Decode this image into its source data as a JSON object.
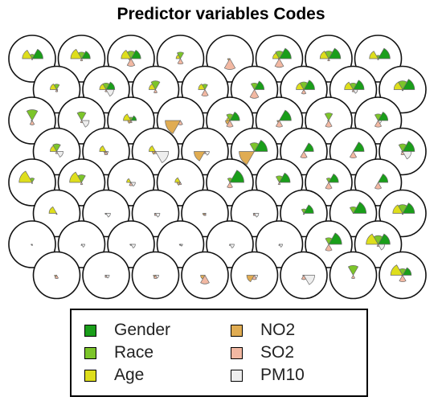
{
  "title": "Predictor variables Codes",
  "chart_data": {
    "type": "som-codes-segments",
    "title": "Predictor variables Codes",
    "grid": {
      "rows": 8,
      "cols": 8,
      "topology": "hexagonal"
    },
    "variables": [
      "Gender",
      "Race",
      "Age",
      "NO2",
      "SO2",
      "PM10"
    ],
    "colors": {
      "Gender": "#1a9e1a",
      "Race": "#7cc52a",
      "Age": "#dede1c",
      "NO2": "#e0ac52",
      "SO2": "#f2b8a2",
      "PM10": "#eeeeee"
    },
    "codes": [
      [
        [
          0.5,
          0.2,
          0.45,
          0.0,
          0.05,
          0.0
        ],
        [
          0.4,
          0.3,
          0.5,
          0.0,
          0.1,
          0.0
        ],
        [
          0.45,
          0.35,
          0.45,
          0.1,
          0.35,
          0.0
        ],
        [
          0.0,
          0.3,
          0.2,
          0.0,
          0.25,
          0.0
        ],
        [
          0.0,
          0.0,
          0.0,
          0.1,
          0.5,
          0.0
        ],
        [
          0.55,
          0.35,
          0.3,
          0.05,
          0.4,
          0.0
        ],
        [
          0.55,
          0.35,
          0.4,
          0.0,
          0.1,
          0.0
        ],
        [
          0.55,
          0.15,
          0.4,
          0.0,
          0.05,
          0.0
        ]
      ],
      [
        [
          0.0,
          0.25,
          0.3,
          0.0,
          0.1,
          0.05
        ],
        [
          0.4,
          0.3,
          0.3,
          0.0,
          0.1,
          0.35
        ],
        [
          0.0,
          0.4,
          0.3,
          0.0,
          0.15,
          0.0
        ],
        [
          0.0,
          0.25,
          0.3,
          0.0,
          0.3,
          0.0
        ],
        [
          0.45,
          0.3,
          0.0,
          0.0,
          0.4,
          0.0
        ],
        [
          0.5,
          0.35,
          0.35,
          0.0,
          0.2,
          0.0
        ],
        [
          0.5,
          0.3,
          0.4,
          0.0,
          0.1,
          0.2
        ],
        [
          0.55,
          0.4,
          0.4,
          0.0,
          0.05,
          0.0
        ]
      ],
      [
        [
          0.0,
          0.5,
          0.0,
          0.05,
          0.2,
          0.0
        ],
        [
          0.0,
          0.4,
          0.0,
          0.0,
          0.1,
          0.35
        ],
        [
          0.25,
          0.15,
          0.35,
          0.15,
          0.1,
          0.0
        ],
        [
          0.0,
          0.0,
          0.0,
          0.7,
          0.2,
          0.0
        ],
        [
          0.45,
          0.3,
          0.15,
          0.2,
          0.3,
          0.0
        ],
        [
          0.55,
          0.0,
          0.0,
          0.1,
          0.3,
          0.0
        ],
        [
          0.0,
          0.35,
          0.0,
          0.05,
          0.3,
          0.0
        ],
        [
          0.45,
          0.3,
          0.0,
          0.0,
          0.3,
          0.15
        ]
      ],
      [
        [
          0.0,
          0.35,
          0.3,
          0.0,
          0.1,
          0.3
        ],
        [
          0.0,
          0.0,
          0.3,
          0.1,
          0.15,
          0.1
        ],
        [
          0.0,
          0.0,
          0.3,
          0.15,
          0.1,
          0.6
        ],
        [
          0.0,
          0.0,
          0.0,
          0.5,
          0.1,
          0.2
        ],
        [
          0.6,
          0.4,
          0.0,
          0.7,
          0.0,
          0.0
        ],
        [
          0.45,
          0.0,
          0.0,
          0.0,
          0.3,
          0.0
        ],
        [
          0.5,
          0.0,
          0.0,
          0.0,
          0.3,
          0.0
        ],
        [
          0.55,
          0.35,
          0.0,
          0.05,
          0.15,
          0.4
        ]
      ],
      [
        [
          0.0,
          0.2,
          0.6,
          0.0,
          0.05,
          0.0
        ],
        [
          0.0,
          0.35,
          0.55,
          0.0,
          0.1,
          0.0
        ],
        [
          0.0,
          0.0,
          0.2,
          0.05,
          0.15,
          0.2
        ],
        [
          0.0,
          0.0,
          0.25,
          0.15,
          0.1,
          0.0
        ],
        [
          0.65,
          0.2,
          0.0,
          0.0,
          0.25,
          0.0
        ],
        [
          0.5,
          0.3,
          0.0,
          0.0,
          0.1,
          0.0
        ],
        [
          0.45,
          0.2,
          0.0,
          0.0,
          0.3,
          0.0
        ],
        [
          0.45,
          0.0,
          0.0,
          0.0,
          0.3,
          0.0
        ]
      ],
      [
        [
          0.0,
          0.0,
          0.35,
          0.0,
          0.05,
          0.0
        ],
        [
          0.0,
          0.0,
          0.0,
          0.05,
          0.05,
          0.2
        ],
        [
          0.0,
          0.0,
          0.0,
          0.05,
          0.1,
          0.2
        ],
        [
          0.0,
          0.0,
          0.0,
          0.1,
          0.1,
          0.05
        ],
        [
          0.0,
          0.0,
          0.0,
          0.05,
          0.1,
          0.2
        ],
        [
          0.45,
          0.2,
          0.0,
          0.0,
          0.05,
          0.0
        ],
        [
          0.6,
          0.3,
          0.0,
          0.0,
          0.0,
          0.0
        ],
        [
          0.55,
          0.4,
          0.45,
          0.0,
          0.05,
          0.0
        ]
      ],
      [
        [
          0.0,
          0.0,
          0.0,
          0.05,
          0.05,
          0.0
        ],
        [
          0.0,
          0.0,
          0.0,
          0.0,
          0.05,
          0.15
        ],
        [
          0.0,
          0.0,
          0.0,
          0.05,
          0.05,
          0.2
        ],
        [
          0.0,
          0.0,
          0.0,
          0.05,
          0.05,
          0.1
        ],
        [
          0.0,
          0.0,
          0.0,
          0.0,
          0.05,
          0.2
        ],
        [
          0.0,
          0.0,
          0.0,
          0.0,
          0.05,
          0.15
        ],
        [
          0.6,
          0.3,
          0.0,
          0.0,
          0.3,
          0.0
        ],
        [
          0.55,
          0.4,
          0.55,
          0.0,
          0.1,
          0.3
        ]
      ],
      [
        [
          0.0,
          0.0,
          0.0,
          0.1,
          0.15,
          0.0
        ],
        [
          0.0,
          0.0,
          0.0,
          0.05,
          0.1,
          0.15
        ],
        [
          0.0,
          0.0,
          0.0,
          0.1,
          0.15,
          0.15
        ],
        [
          0.0,
          0.0,
          0.0,
          0.2,
          0.4,
          0.0
        ],
        [
          0.0,
          0.0,
          0.0,
          0.35,
          0.2,
          0.15
        ],
        [
          0.0,
          0.0,
          0.0,
          0.05,
          0.2,
          0.5
        ],
        [
          0.0,
          0.45,
          0.0,
          0.0,
          0.15,
          0.0
        ],
        [
          0.4,
          0.3,
          0.55,
          0.05,
          0.3,
          0.0
        ]
      ]
    ],
    "legend": {
      "position": "bottom",
      "items": [
        {
          "label": "Gender",
          "color_key": "Gender"
        },
        {
          "label": "NO2",
          "color_key": "NO2"
        },
        {
          "label": "Race",
          "color_key": "Race"
        },
        {
          "label": "SO2",
          "color_key": "SO2"
        },
        {
          "label": "Age",
          "color_key": "Age"
        },
        {
          "label": "PM10",
          "color_key": "PM10"
        }
      ]
    }
  }
}
